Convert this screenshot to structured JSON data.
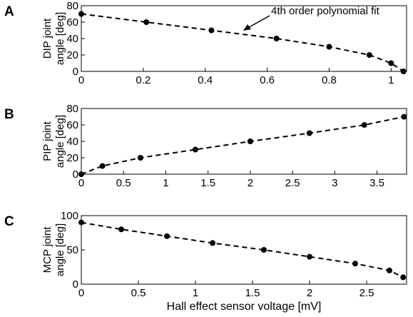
{
  "x_axis_label": "Hall effect sensor voltage [mV]",
  "chart_data": [
    {
      "panel_letter": "A",
      "type": "scatter",
      "ylabel_lines": [
        "DIP joint",
        "angle [deg]"
      ],
      "xlim": [
        0,
        1.05
      ],
      "ylim": [
        0,
        80
      ],
      "x_ticks": [
        0,
        0.2,
        0.4,
        0.6,
        0.8,
        1
      ],
      "y_ticks": [
        0,
        20,
        40,
        60,
        80
      ],
      "annotation": "4th order polynomial fit",
      "x": [
        0,
        0.21,
        0.42,
        0.63,
        0.8,
        0.93,
        1.0,
        1.04
      ],
      "y": [
        70,
        60,
        50,
        40,
        30,
        20,
        10,
        0
      ]
    },
    {
      "panel_letter": "B",
      "type": "scatter",
      "ylabel_lines": [
        "PIP joint",
        "angle [deg]"
      ],
      "xlim": [
        0,
        3.85
      ],
      "ylim": [
        0,
        80
      ],
      "x_ticks": [
        0,
        0.5,
        1,
        1.5,
        2,
        2.5,
        3,
        3.5
      ],
      "y_ticks": [
        0,
        20,
        40,
        60,
        80
      ],
      "x": [
        0,
        0.25,
        0.7,
        1.35,
        2.0,
        2.7,
        3.35,
        3.82
      ],
      "y": [
        0,
        10,
        20,
        30,
        40,
        50,
        60,
        70
      ]
    },
    {
      "panel_letter": "C",
      "type": "scatter",
      "ylabel_lines": [
        "MCP joint",
        "angle [deg]"
      ],
      "xlim": [
        0,
        2.85
      ],
      "ylim": [
        0,
        100
      ],
      "x_ticks": [
        0,
        0.5,
        1,
        1.5,
        2,
        2.5
      ],
      "y_ticks": [
        0,
        50,
        100
      ],
      "x": [
        0,
        0.35,
        0.75,
        1.15,
        1.6,
        2.0,
        2.4,
        2.7,
        2.82
      ],
      "y": [
        90,
        80,
        70,
        60,
        50,
        40,
        30,
        20,
        10
      ]
    }
  ]
}
